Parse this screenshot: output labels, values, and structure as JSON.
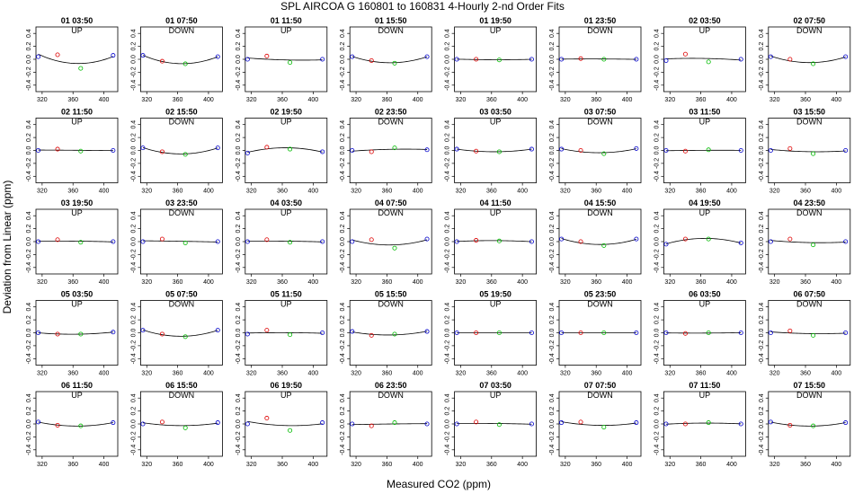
{
  "figure": {
    "title": "SPL   AIRCOA G   160801 to 160831   4-Hourly 2-nd Order Fits",
    "xlabel": "Measured CO2 (ppm)",
    "ylabel": "Deviation from Linear (ppm)"
  },
  "chart_data": {
    "type": "scatter",
    "grid": false,
    "xlim": [
      312,
      418
    ],
    "ylim": [
      -0.5,
      0.5
    ],
    "x_ticks": [
      320,
      360,
      400
    ],
    "y_ticks": [
      0.4,
      0.2,
      0.0,
      -0.2,
      -0.4
    ],
    "x_tick_labels": [
      "320",
      "360",
      "400"
    ],
    "y_tick_labels": [
      "0.4",
      "0.2",
      "0.0",
      "-0.2",
      "-0.4"
    ],
    "point_x": [
      315,
      340,
      370,
      412
    ],
    "point_colors": [
      "#0000cc",
      "#dd0000",
      "#00bb00",
      "#0000cc"
    ],
    "curve_color": "#000000",
    "panels": [
      {
        "title": "01 03:50",
        "label": "UP",
        "y": [
          0.04,
          0.07,
          -0.14,
          0.06
        ]
      },
      {
        "title": "01 07:50",
        "label": "DOWN",
        "y": [
          0.06,
          -0.03,
          -0.07,
          0.04
        ]
      },
      {
        "title": "01 11:50",
        "label": "UP",
        "y": [
          0.0,
          0.05,
          -0.05,
          0.0
        ]
      },
      {
        "title": "01 15:50",
        "label": "DOWN",
        "y": [
          0.04,
          -0.02,
          -0.06,
          0.04
        ]
      },
      {
        "title": "01 19:50",
        "label": "UP",
        "y": [
          0.0,
          0.0,
          -0.01,
          0.0
        ]
      },
      {
        "title": "01 23:50",
        "label": "DOWN",
        "y": [
          0.0,
          0.01,
          0.0,
          0.0
        ]
      },
      {
        "title": "02 03:50",
        "label": "UP",
        "y": [
          -0.02,
          0.08,
          -0.04,
          0.0
        ]
      },
      {
        "title": "02 07:50",
        "label": "DOWN",
        "y": [
          0.04,
          0.0,
          -0.07,
          0.04
        ]
      },
      {
        "title": "02 11:50",
        "label": "UP",
        "y": [
          0.0,
          0.02,
          -0.01,
          0.0
        ]
      },
      {
        "title": "02 15:50",
        "label": "DOWN",
        "y": [
          0.04,
          -0.02,
          -0.06,
          0.04
        ]
      },
      {
        "title": "02 19:50",
        "label": "UP",
        "y": [
          -0.04,
          0.05,
          0.02,
          -0.02
        ]
      },
      {
        "title": "02 23:50",
        "label": "DOWN",
        "y": [
          0.0,
          -0.02,
          0.04,
          0.01
        ]
      },
      {
        "title": "03 03:50",
        "label": "UP",
        "y": [
          0.02,
          -0.01,
          -0.02,
          0.02
        ]
      },
      {
        "title": "03 07:50",
        "label": "DOWN",
        "y": [
          0.02,
          0.0,
          -0.05,
          0.03
        ]
      },
      {
        "title": "03 11:50",
        "label": "UP",
        "y": [
          0.0,
          -0.01,
          0.01,
          0.0
        ]
      },
      {
        "title": "03 15:50",
        "label": "DOWN",
        "y": [
          0.0,
          0.03,
          -0.05,
          0.0
        ]
      },
      {
        "title": "03 19:50",
        "label": "UP",
        "y": [
          0.0,
          0.03,
          -0.01,
          0.0
        ]
      },
      {
        "title": "03 23:50",
        "label": "DOWN",
        "y": [
          0.0,
          0.04,
          -0.02,
          0.0
        ]
      },
      {
        "title": "04 03:50",
        "label": "UP",
        "y": [
          0.0,
          0.03,
          -0.01,
          0.0
        ]
      },
      {
        "title": "04 07:50",
        "label": "DOWN",
        "y": [
          0.0,
          0.03,
          -0.1,
          0.04
        ]
      },
      {
        "title": "04 11:50",
        "label": "UP",
        "y": [
          0.0,
          0.02,
          0.01,
          0.0
        ]
      },
      {
        "title": "04 15:50",
        "label": "DOWN",
        "y": [
          0.04,
          0.0,
          -0.06,
          0.04
        ]
      },
      {
        "title": "04 19:50",
        "label": "UP",
        "y": [
          -0.04,
          0.04,
          0.04,
          -0.02
        ]
      },
      {
        "title": "04 23:50",
        "label": "DOWN",
        "y": [
          0.0,
          0.04,
          -0.05,
          0.0
        ]
      },
      {
        "title": "05 03:50",
        "label": "UP",
        "y": [
          0.0,
          -0.02,
          -0.02,
          0.01
        ]
      },
      {
        "title": "05 07:50",
        "label": "DOWN",
        "y": [
          0.04,
          -0.02,
          -0.06,
          0.04
        ]
      },
      {
        "title": "05 11:50",
        "label": "UP",
        "y": [
          -0.02,
          0.04,
          -0.03,
          0.0
        ]
      },
      {
        "title": "05 15:50",
        "label": "DOWN",
        "y": [
          0.02,
          -0.04,
          -0.02,
          0.02
        ]
      },
      {
        "title": "05 19:50",
        "label": "UP",
        "y": [
          0.0,
          0.0,
          0.0,
          0.0
        ]
      },
      {
        "title": "05 23:50",
        "label": "DOWN",
        "y": [
          0.0,
          0.0,
          0.0,
          0.0
        ]
      },
      {
        "title": "06 03:50",
        "label": "UP",
        "y": [
          0.0,
          -0.01,
          0.0,
          0.0
        ]
      },
      {
        "title": "06 07:50",
        "label": "DOWN",
        "y": [
          0.0,
          0.03,
          -0.04,
          0.0
        ]
      },
      {
        "title": "06 11:50",
        "label": "UP",
        "y": [
          0.03,
          -0.02,
          -0.03,
          0.02
        ]
      },
      {
        "title": "06 15:50",
        "label": "DOWN",
        "y": [
          0.0,
          0.03,
          -0.06,
          0.02
        ]
      },
      {
        "title": "06 19:50",
        "label": "UP",
        "y": [
          0.0,
          0.09,
          -0.1,
          0.02
        ]
      },
      {
        "title": "06 23:50",
        "label": "DOWN",
        "y": [
          0.0,
          -0.03,
          0.02,
          0.0
        ]
      },
      {
        "title": "07 03:50",
        "label": "UP",
        "y": [
          0.0,
          0.03,
          -0.01,
          0.0
        ]
      },
      {
        "title": "07 07:50",
        "label": "DOWN",
        "y": [
          0.02,
          0.03,
          -0.05,
          0.02
        ]
      },
      {
        "title": "07 11:50",
        "label": "UP",
        "y": [
          0.0,
          0.0,
          0.02,
          0.0
        ]
      },
      {
        "title": "07 15:50",
        "label": "DOWN",
        "y": [
          0.03,
          -0.02,
          -0.03,
          0.02
        ]
      }
    ]
  }
}
